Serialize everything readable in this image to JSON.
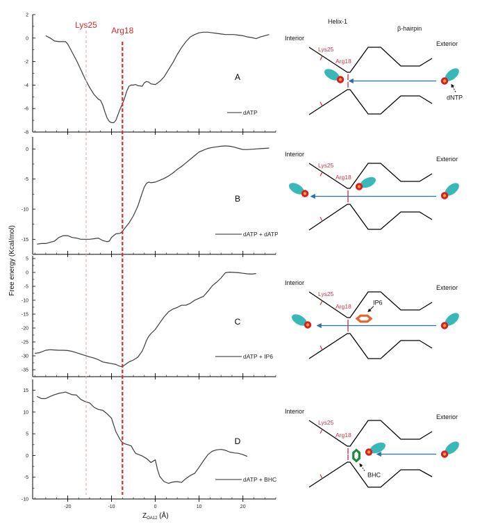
{
  "figure": {
    "ylabel": "Free energy (Kcal/mol)",
    "xlabel_main": "Z",
    "xlabel_sub": "OA12",
    "xlabel_unit": " (Å)",
    "markers": [
      {
        "label": "Lys25",
        "x": -15.8,
        "style": "thin-dashed",
        "color": "#e8a0a0"
      },
      {
        "label": "Arg18",
        "x": -7.5,
        "style": "thick-dashed",
        "color": "#dd2b2b"
      }
    ],
    "x_ticks": [
      -20,
      -10,
      0,
      10,
      20
    ],
    "x_tick_labels": [
      "-20",
      "-10",
      "0",
      "10",
      "20"
    ]
  },
  "chart_data": [
    {
      "type": "line",
      "panel": "A",
      "legend": "dATP",
      "xlim": [
        -28,
        27.5
      ],
      "ylim": [
        -8,
        2
      ],
      "yticks": [
        2,
        0,
        -2,
        -4,
        -6,
        -8
      ],
      "ytick_labels": [
        "2",
        "0",
        "-2",
        "-4",
        "-6",
        "-8"
      ],
      "x": [
        -25,
        -24,
        -23,
        -22,
        -21,
        -20.5,
        -20,
        -19,
        -18,
        -17,
        -16,
        -15,
        -14,
        -13,
        -12.5,
        -12,
        -11.5,
        -11,
        -10.5,
        -10,
        -9.5,
        -9,
        -8.5,
        -8,
        -7.5,
        -7,
        -6.5,
        -6,
        -5.5,
        -5,
        -4.5,
        -4,
        -3,
        -2.5,
        -2,
        -1.5,
        -1,
        0,
        1,
        2,
        3,
        4,
        5,
        6,
        7,
        8,
        9,
        10,
        11,
        12,
        13,
        14,
        15,
        16,
        17,
        18,
        19,
        20,
        21,
        22,
        23,
        24,
        25,
        26
      ],
      "y": [
        0.2,
        0.0,
        -0.25,
        -0.3,
        -0.3,
        -0.3,
        -0.5,
        -1.2,
        -1.9,
        -2.7,
        -3.5,
        -4.2,
        -4.8,
        -5.2,
        -5.3,
        -5.7,
        -6.3,
        -6.8,
        -7.1,
        -7.2,
        -7.2,
        -7.0,
        -6.5,
        -6.0,
        -5.6,
        -5.1,
        -4.5,
        -4.1,
        -4.0,
        -4.0,
        -3.95,
        -4.05,
        -4.1,
        -3.8,
        -3.7,
        -3.75,
        -3.9,
        -3.95,
        -3.7,
        -3.3,
        -2.7,
        -2.1,
        -1.4,
        -0.8,
        -0.3,
        0.1,
        0.3,
        0.45,
        0.5,
        0.5,
        0.45,
        0.4,
        0.35,
        0.3,
        0.3,
        0.3,
        0.25,
        0.2,
        0.1,
        0.05,
        -0.05,
        0.1,
        0.2,
        0.3
      ]
    },
    {
      "type": "line",
      "panel": "B",
      "legend": "dATP + dATP",
      "xlim": [
        -28,
        27.5
      ],
      "ylim": [
        -17.5,
        2
      ],
      "yticks": [
        0,
        -5,
        -10,
        -15
      ],
      "ytick_labels": [
        "0",
        "-5",
        "-10",
        "-15"
      ],
      "x": [
        -27,
        -26,
        -25,
        -24,
        -23,
        -22,
        -21,
        -20,
        -19,
        -18,
        -17,
        -16,
        -15,
        -14,
        -13,
        -12,
        -11,
        -10.5,
        -10,
        -9,
        -8,
        -7.5,
        -7,
        -6,
        -5,
        -4,
        -3,
        -2.5,
        -2,
        -1.5,
        -1,
        0,
        1,
        2,
        3,
        4,
        5,
        6,
        7,
        8,
        9,
        10,
        11,
        12,
        13,
        14,
        15,
        16,
        17,
        18,
        19,
        20,
        21,
        22,
        23,
        24,
        25,
        26
      ],
      "y": [
        -15.8,
        -15.7,
        -15.7,
        -15.5,
        -15.3,
        -14.7,
        -14.4,
        -14.4,
        -14.7,
        -14.8,
        -15.0,
        -15.0,
        -15.0,
        -14.9,
        -14.8,
        -15.2,
        -15.4,
        -15.3,
        -14.7,
        -14.1,
        -14.0,
        -13.7,
        -13.2,
        -12.3,
        -11.1,
        -9.5,
        -7.3,
        -6.3,
        -5.7,
        -5.5,
        -5.6,
        -5.5,
        -5.2,
        -4.9,
        -4.5,
        -4.0,
        -3.4,
        -2.9,
        -2.3,
        -1.7,
        -1.1,
        -0.5,
        -0.2,
        0.1,
        0.25,
        0.35,
        0.45,
        0.5,
        0.45,
        0.3,
        0.1,
        -0.1,
        -0.1,
        -0.05,
        0.0,
        0.05,
        0.1,
        0.15
      ]
    },
    {
      "type": "line",
      "panel": "C",
      "legend": "dATP + IP6",
      "xlim": [
        -28,
        27.5
      ],
      "ylim": [
        -37.5,
        6
      ],
      "yticks": [
        5,
        0,
        -5,
        -10,
        -15,
        -20,
        -25,
        -30,
        -35
      ],
      "ytick_labels": [
        "5",
        "0",
        "-5",
        "-10",
        "-15",
        "-20",
        "-25",
        "-30",
        "-35"
      ],
      "x": [
        -27.5,
        -26.5,
        -25,
        -24,
        -23,
        -22,
        -21,
        -20,
        -19,
        -18,
        -17,
        -16,
        -15,
        -14,
        -13,
        -12,
        -11,
        -10,
        -9,
        -8.5,
        -8,
        -7.5,
        -7,
        -6,
        -5,
        -4,
        -3,
        -2.5,
        -2,
        -1.5,
        -1,
        0,
        1,
        2,
        3,
        4,
        5,
        6,
        7,
        8,
        9,
        10,
        11,
        12,
        13,
        14,
        15,
        16,
        17,
        18,
        19,
        20,
        21,
        22,
        23
      ],
      "y": [
        -29.1,
        -28.9,
        -28.0,
        -27.8,
        -27.9,
        -28.0,
        -28.0,
        -28.1,
        -28.4,
        -28.9,
        -29.4,
        -29.9,
        -30.4,
        -30.8,
        -31.4,
        -32.2,
        -32.5,
        -32.8,
        -33.1,
        -33.5,
        -33.8,
        -33.9,
        -33.3,
        -32.2,
        -31.5,
        -30.5,
        -28.3,
        -26.5,
        -24.4,
        -23.0,
        -22.0,
        -20.5,
        -18.2,
        -16.0,
        -14.2,
        -13.2,
        -12.6,
        -11.8,
        -11.8,
        -11.1,
        -10.0,
        -9.3,
        -8.6,
        -6.8,
        -4.8,
        -3.5,
        -2.0,
        -0.1,
        0.1,
        0.0,
        -0.1,
        -0.3,
        -0.5,
        -0.6,
        -0.4
      ]
    },
    {
      "type": "line",
      "panel": "D",
      "legend": "dATP + BHC",
      "xlim": [
        -28,
        27.5
      ],
      "ylim": [
        -10,
        17.5
      ],
      "yticks": [
        15,
        10,
        5,
        0,
        -5,
        -10
      ],
      "ytick_labels": [
        "15",
        "10",
        "5",
        "0",
        "-5",
        "-10"
      ],
      "x": [
        -27,
        -26,
        -25,
        -24,
        -23,
        -22,
        -21,
        -20.5,
        -20,
        -19,
        -18,
        -17,
        -16,
        -15,
        -14,
        -13,
        -12,
        -11,
        -10,
        -9.5,
        -9,
        -8,
        -7.5,
        -7,
        -6,
        -5.5,
        -5,
        -4.5,
        -4,
        -3,
        -2,
        -1,
        0,
        0.5,
        1,
        2,
        3,
        4,
        5,
        6,
        7,
        8,
        9,
        10,
        11,
        12,
        13,
        14,
        15,
        16,
        17,
        18,
        19,
        20,
        21
      ],
      "y": [
        13.6,
        13.1,
        13.1,
        13.6,
        14.0,
        14.3,
        14.5,
        14.6,
        14.4,
        14.0,
        13.9,
        12.9,
        12.4,
        12.1,
        11.1,
        10.6,
        10.4,
        9.6,
        8.6,
        7.0,
        5.5,
        3.6,
        3.0,
        2.7,
        2.4,
        2.2,
        1.3,
        0.5,
        0.3,
        -0.1,
        -0.7,
        -1.6,
        -1.0,
        -3.2,
        -4.8,
        -6.0,
        -6.4,
        -6.1,
        -6.0,
        -6.2,
        -5.3,
        -4.6,
        -4.1,
        -2.7,
        -1.2,
        0.2,
        1.0,
        1.3,
        1.4,
        1.2,
        0.8,
        0.6,
        0.5,
        0.2,
        -0.2
      ]
    }
  ],
  "diagrams": [
    {
      "panel": "A",
      "interior": "Interior",
      "exterior": "Exterior",
      "helix": "Helix-1",
      "hairpin": "β-hairpin",
      "lys": "Lys25",
      "arg": "Arg18",
      "ligand_label": "dNTP",
      "arrow_direction": "inward-to-arg18"
    },
    {
      "panel": "B",
      "interior": "Interior",
      "exterior": "Exterior",
      "lys": "Lys25",
      "arg": "Arg18",
      "arrow_direction": "through-to-interior"
    },
    {
      "panel": "C",
      "interior": "Interior",
      "exterior": "Exterior",
      "lys": "Lys25",
      "arg": "Arg18",
      "ligand_label": "IP6",
      "arrow_direction": "through-to-interior"
    },
    {
      "panel": "D",
      "interior": "Interior",
      "exterior": "Exterior",
      "lys": "Lys25",
      "arg": "Arg18",
      "ligand_label": "BHC",
      "arrow_direction": "blocked"
    }
  ],
  "colors": {
    "curve": "#3a3a3a",
    "arg_marker": "#dd2b2b",
    "lys_marker": "#e8a0a0",
    "arrow": "#2a6fa8",
    "dntp_base": "#3ab8b8",
    "phosphate_outer": "#d62020",
    "phosphate_inner": "#f0a040",
    "ip6": "#e8602a",
    "bhc": "#1a8a3a",
    "residue_label": "#c8394a"
  }
}
